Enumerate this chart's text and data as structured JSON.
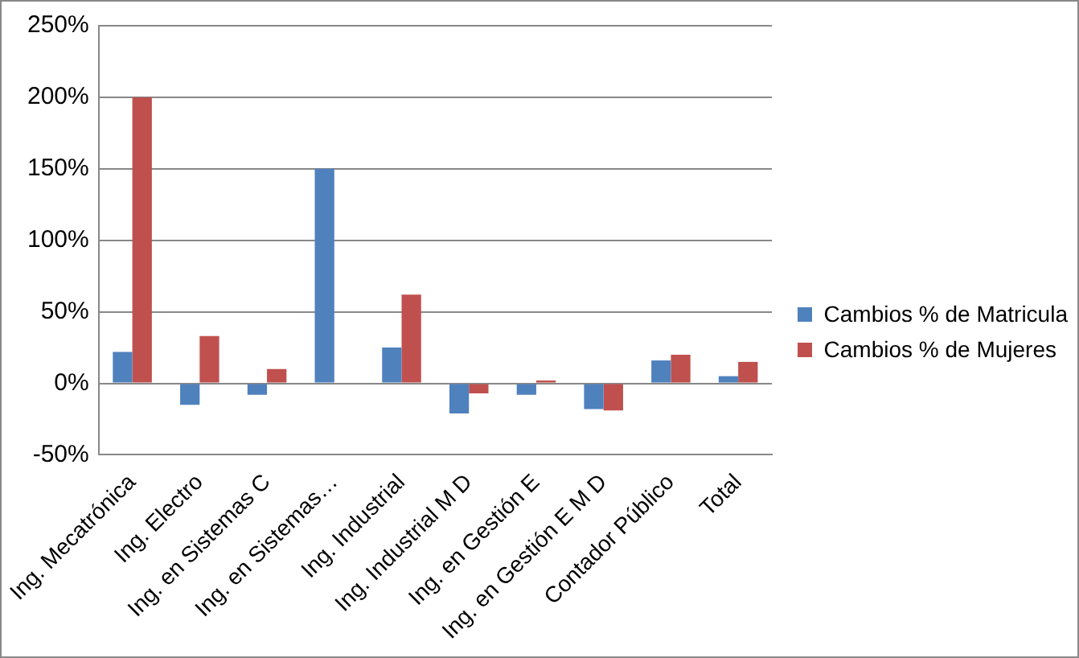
{
  "chart_data": {
    "type": "bar",
    "categories": [
      "Ing. Mecatrónica",
      "Ing. Electro",
      "Ing. en Sistemas C",
      "Ing. en Sistemas…",
      "Ing. Industrial",
      "Ing. Industrial M D",
      "Ing. en Gestión E",
      "Ing. en Gestión E M D",
      "Contador Público",
      "Total"
    ],
    "series": [
      {
        "name": "Cambios % de Matricula",
        "color": "#4f81bd",
        "values": [
          22,
          -15,
          -8,
          150,
          25,
          -21,
          -8,
          -18,
          16,
          5
        ]
      },
      {
        "name": "Cambios % de Mujeres",
        "color": "#c0504d",
        "values": [
          200,
          33,
          10,
          0,
          62,
          -7,
          2,
          -19,
          20,
          15
        ]
      }
    ],
    "ylim": [
      -50,
      250
    ],
    "yticks": [
      {
        "value": -50,
        "label": "-50%"
      },
      {
        "value": 0,
        "label": "0%"
      },
      {
        "value": 50,
        "label": "50%"
      },
      {
        "value": 100,
        "label": "100%"
      },
      {
        "value": 150,
        "label": "150%"
      },
      {
        "value": 200,
        "label": "200%"
      },
      {
        "value": 250,
        "label": "250%"
      }
    ],
    "grid": "y",
    "legend": "right"
  }
}
